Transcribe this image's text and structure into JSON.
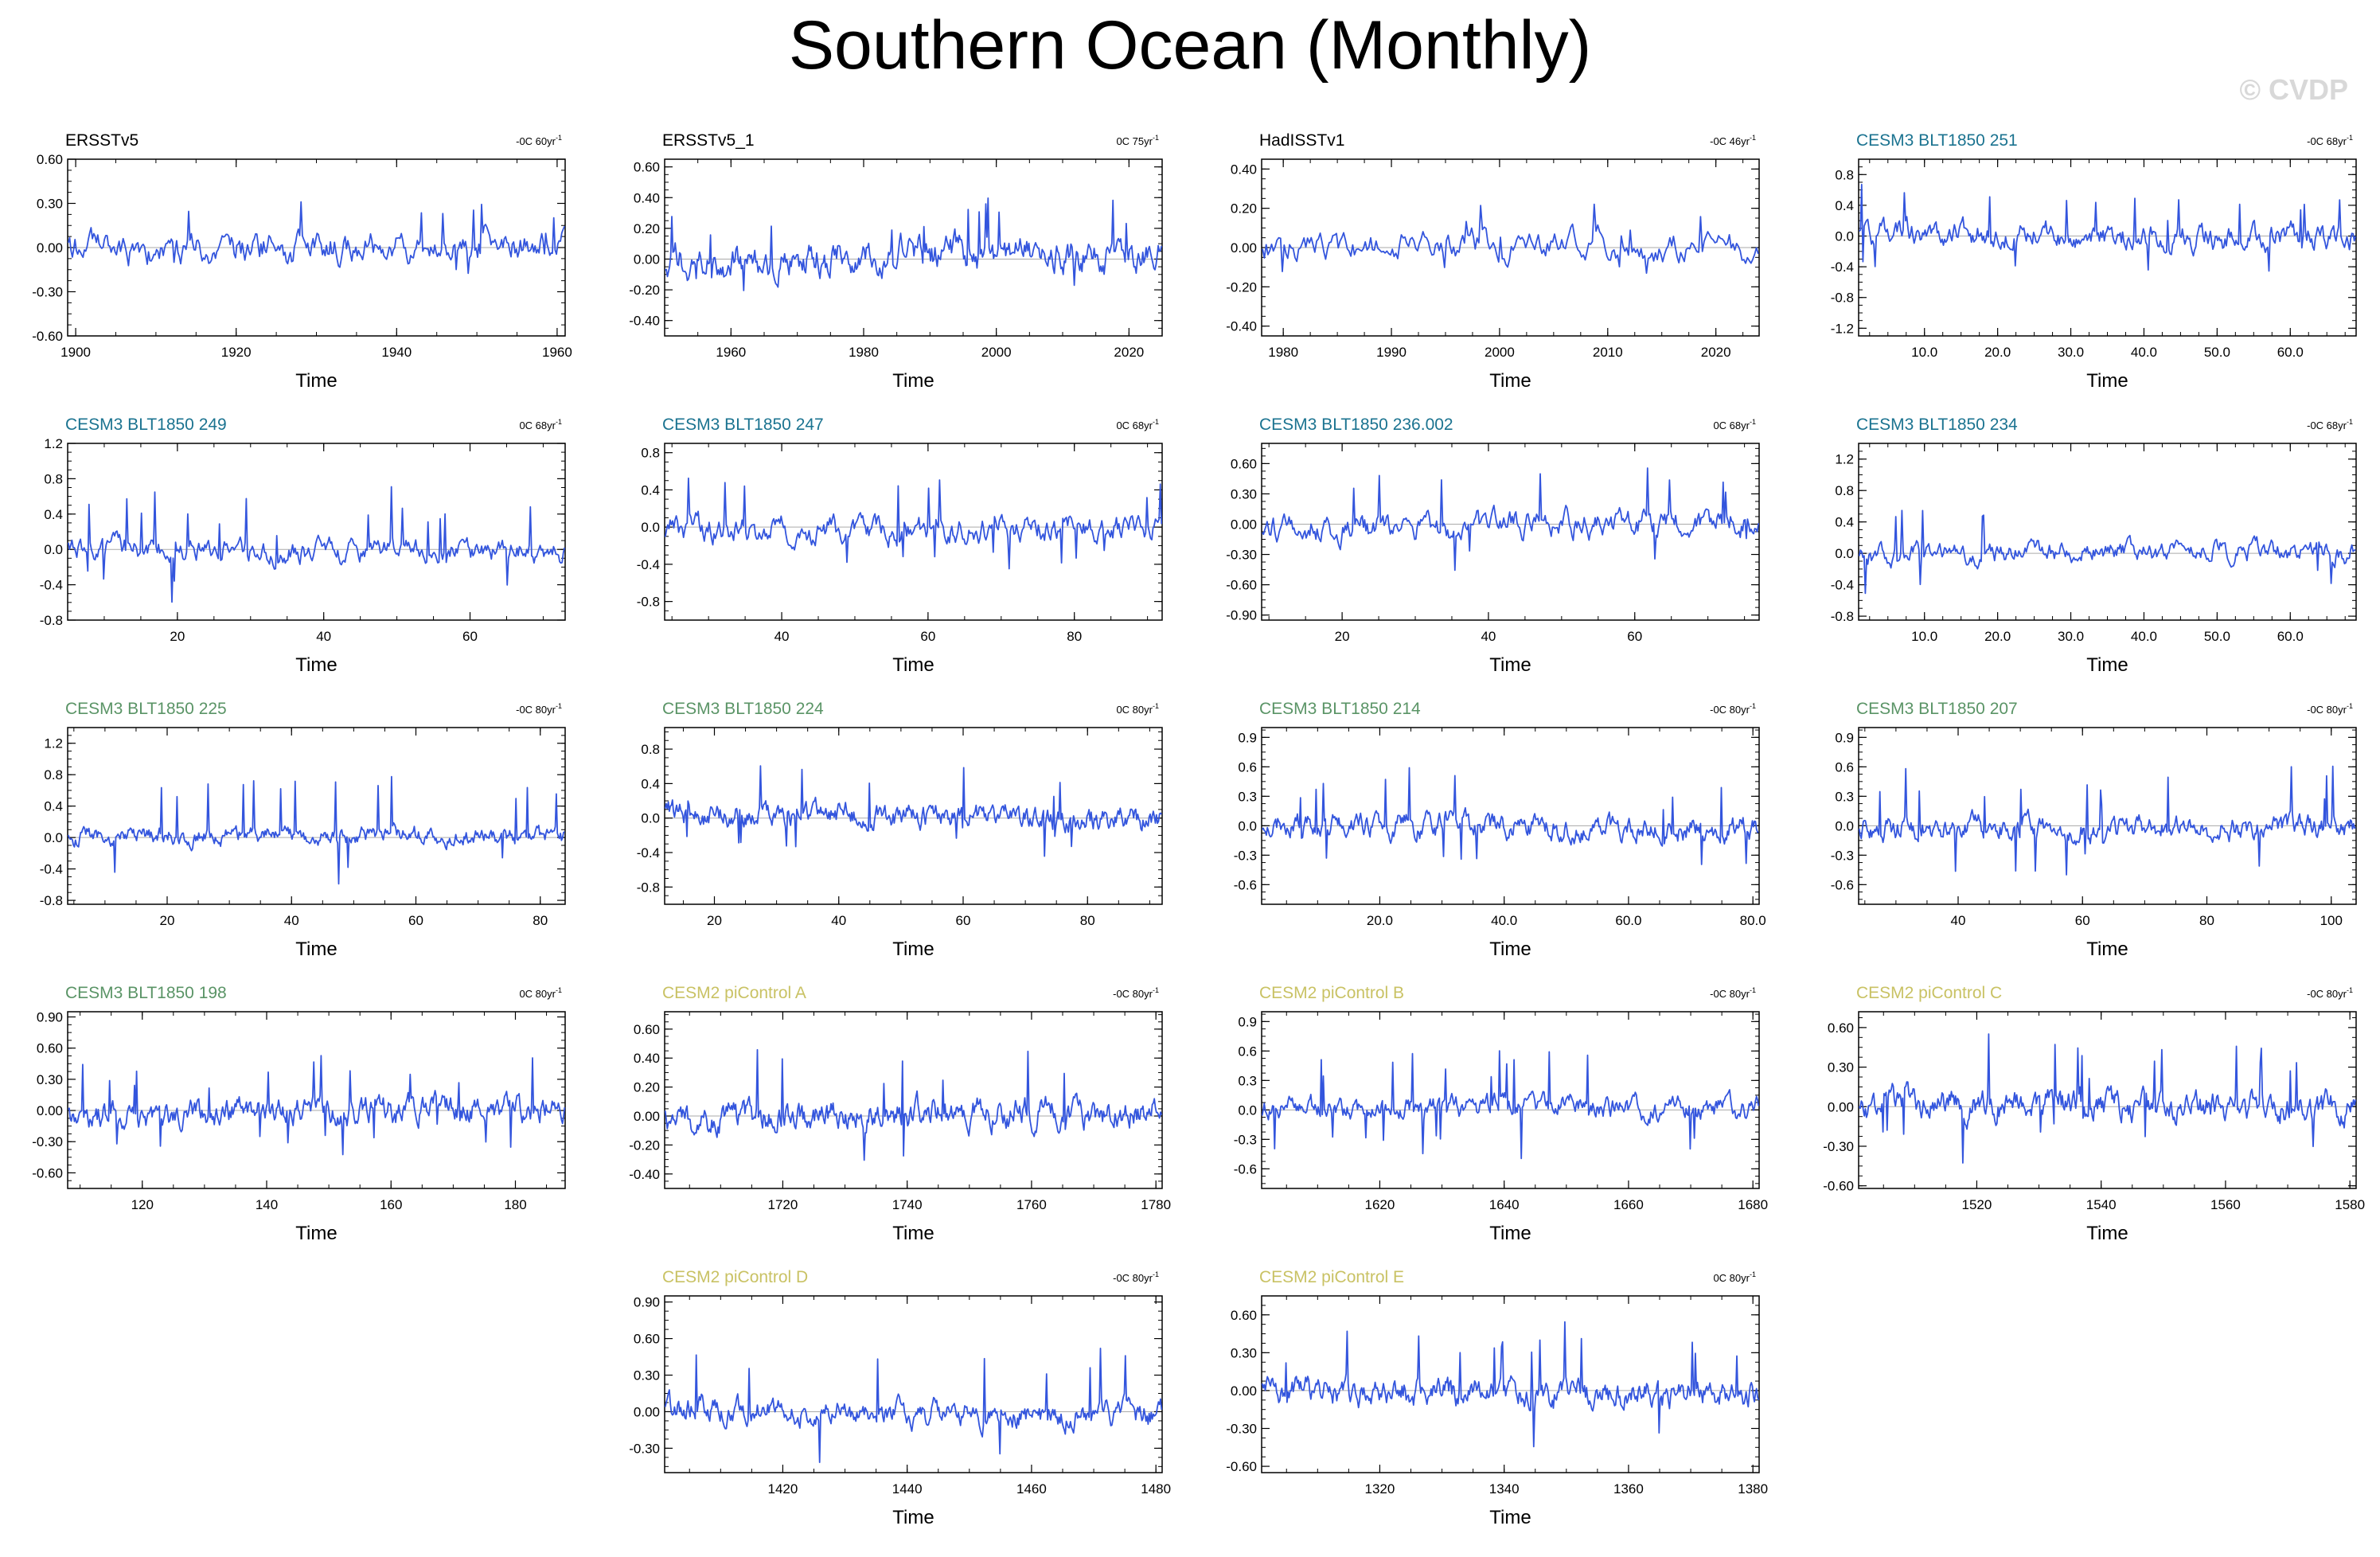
{
  "title": "Southern Ocean (Monthly)",
  "watermark": "© CVDP",
  "colors": {
    "line": "#3355dd",
    "title_obs": "#000000",
    "title_blt_teal": "#1b7390",
    "title_blt_green": "#5a9466",
    "title_cesm2": "#c9c264"
  },
  "chart_data": [
    {
      "type": "line",
      "title": "ERSSTv5",
      "title_color": "#000000",
      "trend": "-0C 60yr",
      "xlabel": "Time",
      "xlim": [
        1899,
        1961
      ],
      "ylim": [
        -0.6,
        0.6
      ],
      "yticks": [
        -0.6,
        -0.3,
        0,
        0.3,
        0.6
      ],
      "ytick_labels": [
        "-0.60",
        "-0.30",
        "0.00",
        "0.30",
        "0.60"
      ],
      "xticks": [
        1900,
        1920,
        1940,
        1960
      ],
      "xtick_labels": [
        "1900",
        "1920",
        "1940",
        "1960"
      ],
      "amp": 0.11,
      "spike": 0.25,
      "seed": 11
    },
    {
      "type": "line",
      "title": "ERSSTv5_1",
      "title_color": "#000000",
      "trend": "0C 75yr",
      "xlabel": "Time",
      "xlim": [
        1950,
        2025
      ],
      "ylim": [
        -0.5,
        0.65
      ],
      "yticks": [
        -0.4,
        -0.2,
        0,
        0.2,
        0.4,
        0.6
      ],
      "ytick_labels": [
        "-0.40",
        "-0.20",
        "0.00",
        "0.20",
        "0.40",
        "0.60"
      ],
      "xticks": [
        1960,
        1980,
        2000,
        2020
      ],
      "xtick_labels": [
        "1960",
        "1980",
        "2000",
        "2020"
      ],
      "amp": 0.12,
      "spike": 0.3,
      "seed": 12
    },
    {
      "type": "line",
      "title": "HadISSTv1",
      "title_color": "#000000",
      "trend": "-0C 46yr",
      "xlabel": "Time",
      "xlim": [
        1978,
        2024
      ],
      "ylim": [
        -0.45,
        0.45
      ],
      "yticks": [
        -0.4,
        -0.2,
        0,
        0.2,
        0.4
      ],
      "ytick_labels": [
        "-0.40",
        "-0.20",
        "0.00",
        "0.20",
        "0.40"
      ],
      "xticks": [
        1980,
        1990,
        2000,
        2010,
        2020
      ],
      "xtick_labels": [
        "1980",
        "1990",
        "2000",
        "2010",
        "2020"
      ],
      "amp": 0.08,
      "spike": 0.18,
      "seed": 13
    },
    {
      "type": "line",
      "title": "CESM3 BLT1850 251",
      "title_color": "#1b7390",
      "trend": "-0C 68yr",
      "xlabel": "Time",
      "xlim": [
        1,
        69
      ],
      "ylim": [
        -1.3,
        1.0
      ],
      "yticks": [
        -1.2,
        -0.8,
        -0.4,
        0,
        0.4,
        0.8
      ],
      "ytick_labels": [
        "-1.2",
        "-0.8",
        "-0.4",
        "0.0",
        "0.4",
        "0.8"
      ],
      "xticks": [
        10,
        20,
        30,
        40,
        50,
        60
      ],
      "xtick_labels": [
        "10.0",
        "20.0",
        "30.0",
        "40.0",
        "50.0",
        "60.0"
      ],
      "amp": 0.18,
      "spike": 0.55,
      "seed": 14
    },
    {
      "type": "line",
      "title": "CESM3 BLT1850 249",
      "title_color": "#1b7390",
      "trend": "0C 68yr",
      "xlabel": "Time",
      "xlim": [
        5,
        73
      ],
      "ylim": [
        -0.8,
        1.2
      ],
      "yticks": [
        -0.8,
        -0.4,
        0,
        0.4,
        0.8,
        1.2
      ],
      "ytick_labels": [
        "-0.8",
        "-0.4",
        "0.0",
        "0.4",
        "0.8",
        "1.2"
      ],
      "xticks": [
        20,
        40,
        60
      ],
      "xtick_labels": [
        "20",
        "40",
        "60"
      ],
      "amp": 0.14,
      "spike": 0.6,
      "seed": 15
    },
    {
      "type": "line",
      "title": "CESM3 BLT1850 247",
      "title_color": "#1b7390",
      "trend": "0C 68yr",
      "xlabel": "Time",
      "xlim": [
        24,
        92
      ],
      "ylim": [
        -1.0,
        0.9
      ],
      "yticks": [
        -0.8,
        -0.4,
        0,
        0.4,
        0.8
      ],
      "ytick_labels": [
        "-0.8",
        "-0.4",
        "0.0",
        "0.4",
        "0.8"
      ],
      "xticks": [
        40,
        60,
        80
      ],
      "xtick_labels": [
        "40",
        "60",
        "80"
      ],
      "amp": 0.15,
      "spike": 0.55,
      "seed": 16
    },
    {
      "type": "line",
      "title": "CESM3 BLT1850 236.002",
      "title_color": "#1b7390",
      "trend": "0C 68yr",
      "xlabel": "Time",
      "xlim": [
        9,
        77
      ],
      "ylim": [
        -0.95,
        0.8
      ],
      "yticks": [
        -0.9,
        -0.6,
        -0.3,
        0,
        0.3,
        0.6
      ],
      "ytick_labels": [
        "-0.90",
        "-0.60",
        "-0.30",
        "0.00",
        "0.30",
        "0.60"
      ],
      "xticks": [
        20,
        40,
        60
      ],
      "xtick_labels": [
        "20",
        "40",
        "60"
      ],
      "amp": 0.14,
      "spike": 0.45,
      "seed": 17
    },
    {
      "type": "line",
      "title": "CESM3 BLT1850 234",
      "title_color": "#1b7390",
      "trend": "-0C 68yr",
      "xlabel": "Time",
      "xlim": [
        1,
        69
      ],
      "ylim": [
        -0.85,
        1.4
      ],
      "yticks": [
        -0.8,
        -0.4,
        0,
        0.4,
        0.8,
        1.2
      ],
      "ytick_labels": [
        "-0.8",
        "-0.4",
        "0.0",
        "0.4",
        "0.8",
        "1.2"
      ],
      "xticks": [
        10,
        20,
        30,
        40,
        50,
        60
      ],
      "xtick_labels": [
        "10.0",
        "20.0",
        "30.0",
        "40.0",
        "50.0",
        "60.0"
      ],
      "amp": 0.14,
      "spike": 0.6,
      "seed": 18
    },
    {
      "type": "line",
      "title": "CESM3 BLT1850 225",
      "title_color": "#5a9466",
      "trend": "-0C 80yr",
      "xlabel": "Time",
      "xlim": [
        4,
        84
      ],
      "ylim": [
        -0.85,
        1.4
      ],
      "yticks": [
        -0.8,
        -0.4,
        0,
        0.4,
        0.8,
        1.2
      ],
      "ytick_labels": [
        "-0.8",
        "-0.4",
        "0.0",
        "0.4",
        "0.8",
        "1.2"
      ],
      "xticks": [
        20,
        40,
        60,
        80
      ],
      "xtick_labels": [
        "20",
        "40",
        "60",
        "80"
      ],
      "amp": 0.12,
      "spike": 0.7,
      "seed": 19
    },
    {
      "type": "line",
      "title": "CESM3 BLT1850 224",
      "title_color": "#5a9466",
      "trend": "0C 80yr",
      "xlabel": "Time",
      "xlim": [
        12,
        92
      ],
      "ylim": [
        -1.0,
        1.05
      ],
      "yticks": [
        -0.8,
        -0.4,
        0,
        0.4,
        0.8
      ],
      "ytick_labels": [
        "-0.8",
        "-0.4",
        "0.0",
        "0.4",
        "0.8"
      ],
      "xticks": [
        20,
        40,
        60,
        80
      ],
      "xtick_labels": [
        "20",
        "40",
        "60",
        "80"
      ],
      "amp": 0.15,
      "spike": 0.55,
      "seed": 20
    },
    {
      "type": "line",
      "title": "CESM3 BLT1850 214",
      "title_color": "#5a9466",
      "trend": "-0C 80yr",
      "xlabel": "Time",
      "xlim": [
        1,
        81
      ],
      "ylim": [
        -0.8,
        1.0
      ],
      "yticks": [
        -0.6,
        -0.3,
        0,
        0.3,
        0.6,
        0.9
      ],
      "ytick_labels": [
        "-0.6",
        "-0.3",
        "0.0",
        "0.3",
        "0.6",
        "0.9"
      ],
      "xticks": [
        20,
        40,
        60,
        80
      ],
      "xtick_labels": [
        "20.0",
        "40.0",
        "60.0",
        "80.0"
      ],
      "amp": 0.13,
      "spike": 0.5,
      "seed": 21
    },
    {
      "type": "line",
      "title": "CESM3 BLT1850 207",
      "title_color": "#5a9466",
      "trend": "-0C 80yr",
      "xlabel": "Time",
      "xlim": [
        24,
        104
      ],
      "ylim": [
        -0.8,
        1.0
      ],
      "yticks": [
        -0.6,
        -0.3,
        0,
        0.3,
        0.6,
        0.9
      ],
      "ytick_labels": [
        "-0.6",
        "-0.3",
        "0.0",
        "0.3",
        "0.6",
        "0.9"
      ],
      "xticks": [
        40,
        60,
        80,
        100
      ],
      "xtick_labels": [
        "40",
        "60",
        "80",
        "100"
      ],
      "amp": 0.13,
      "spike": 0.55,
      "seed": 22
    },
    {
      "type": "line",
      "title": "CESM3 BLT1850 198",
      "title_color": "#5a9466",
      "trend": "0C 80yr",
      "xlabel": "Time",
      "xlim": [
        108,
        188
      ],
      "ylim": [
        -0.75,
        0.95
      ],
      "yticks": [
        -0.6,
        -0.3,
        0,
        0.3,
        0.6,
        0.9
      ],
      "ytick_labels": [
        "-0.60",
        "-0.30",
        "0.00",
        "0.30",
        "0.60",
        "0.90"
      ],
      "xticks": [
        120,
        140,
        160,
        180
      ],
      "xtick_labels": [
        "120",
        "140",
        "160",
        "180"
      ],
      "amp": 0.14,
      "spike": 0.5,
      "seed": 23
    },
    {
      "type": "line",
      "title": "CESM2 piControl A",
      "title_color": "#c9c264",
      "trend": "-0C 80yr",
      "xlabel": "Time",
      "xlim": [
        1701,
        1781
      ],
      "ylim": [
        -0.5,
        0.72
      ],
      "yticks": [
        -0.4,
        -0.2,
        0,
        0.2,
        0.4,
        0.6
      ],
      "ytick_labels": [
        "-0.40",
        "-0.20",
        "0.00",
        "0.20",
        "0.40",
        "0.60"
      ],
      "xticks": [
        1720,
        1740,
        1760,
        1780
      ],
      "xtick_labels": [
        "1720",
        "1740",
        "1760",
        "1780"
      ],
      "amp": 0.11,
      "spike": 0.42,
      "seed": 24
    },
    {
      "type": "line",
      "title": "CESM2 piControl B",
      "title_color": "#c9c264",
      "trend": "-0C 80yr",
      "xlabel": "Time",
      "xlim": [
        1601,
        1681
      ],
      "ylim": [
        -0.8,
        1.0
      ],
      "yticks": [
        -0.6,
        -0.3,
        0,
        0.3,
        0.6,
        0.9
      ],
      "ytick_labels": [
        "-0.6",
        "-0.3",
        "0.0",
        "0.3",
        "0.6",
        "0.9"
      ],
      "xticks": [
        1620,
        1640,
        1660,
        1680
      ],
      "xtick_labels": [
        "1620",
        "1640",
        "1660",
        "1680"
      ],
      "amp": 0.12,
      "spike": 0.55,
      "seed": 25
    },
    {
      "type": "line",
      "title": "CESM2 piControl C",
      "title_color": "#c9c264",
      "trend": "-0C 80yr",
      "xlabel": "Time",
      "xlim": [
        1501,
        1581
      ],
      "ylim": [
        -0.62,
        0.72
      ],
      "yticks": [
        -0.6,
        -0.3,
        0,
        0.3,
        0.6
      ],
      "ytick_labels": [
        "-0.60",
        "-0.30",
        "0.00",
        "0.30",
        "0.60"
      ],
      "xticks": [
        1520,
        1540,
        1560,
        1580
      ],
      "xtick_labels": [
        "1520",
        "1540",
        "1560",
        "1580"
      ],
      "amp": 0.12,
      "spike": 0.45,
      "seed": 26
    },
    {
      "type": "line",
      "title": "CESM2 piControl D",
      "title_color": "#c9c264",
      "trend": "-0C 80yr",
      "xlabel": "Time",
      "xlim": [
        1401,
        1481
      ],
      "ylim": [
        -0.5,
        0.95
      ],
      "yticks": [
        -0.3,
        0,
        0.3,
        0.6,
        0.9
      ],
      "ytick_labels": [
        "-0.30",
        "0.00",
        "0.30",
        "0.60",
        "0.90"
      ],
      "xticks": [
        1420,
        1440,
        1460,
        1480
      ],
      "xtick_labels": [
        "1420",
        "1440",
        "1460",
        "1480"
      ],
      "amp": 0.11,
      "spike": 0.5,
      "seed": 27
    },
    {
      "type": "line",
      "title": "CESM2 piControl E",
      "title_color": "#c9c264",
      "trend": "0C 80yr",
      "xlabel": "Time",
      "xlim": [
        1301,
        1381
      ],
      "ylim": [
        -0.65,
        0.75
      ],
      "yticks": [
        -0.6,
        -0.3,
        0,
        0.3,
        0.6
      ],
      "ytick_labels": [
        "-0.60",
        "-0.30",
        "0.00",
        "0.30",
        "0.60"
      ],
      "xticks": [
        1320,
        1340,
        1360,
        1380
      ],
      "xtick_labels": [
        "1320",
        "1340",
        "1360",
        "1380"
      ],
      "amp": 0.12,
      "spike": 0.45,
      "seed": 28
    }
  ]
}
